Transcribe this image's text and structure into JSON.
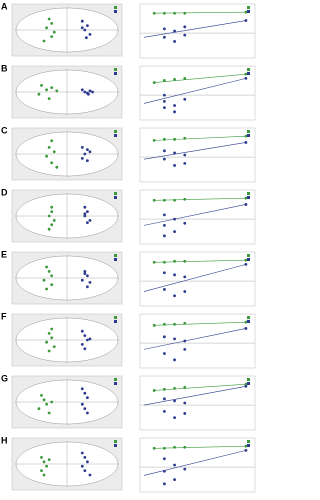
{
  "chart_data": [
    {
      "type": "panel",
      "label": "A",
      "score": {
        "xlim": [
          -1,
          1
        ],
        "ylim": [
          -1,
          1
        ],
        "groups": [
          {
            "color": "#3c9a3c",
            "x": [
              -0.35,
              -0.3,
              -0.4,
              -0.25,
              -0.3,
              -0.45
            ],
            "y": [
              0.5,
              0.3,
              0.1,
              -0.1,
              -0.3,
              -0.5
            ]
          },
          {
            "color": "#2b3a8f",
            "x": [
              0.3,
              0.4,
              0.35,
              0.45,
              0.3,
              0.38
            ],
            "y": [
              0.4,
              0.2,
              0,
              -0.2,
              0.1,
              -0.35
            ]
          }
        ]
      },
      "perm": {
        "xlim": [
          0,
          1.05
        ],
        "ylim": [
          -1,
          1.2
        ],
        "r2": {
          "color": "#3c9a3c",
          "x": [
            0.1,
            0.2,
            0.3,
            0.4,
            1
          ],
          "y": [
            0.95,
            0.95,
            0.95,
            0.95,
            1
          ]
        },
        "q2": {
          "color": "#2b3a8f",
          "x": [
            0.2,
            0.2,
            0.3,
            0.3,
            0.4,
            0.4,
            1
          ],
          "y": [
            0.2,
            -0.2,
            0.1,
            -0.4,
            -0.1,
            0.3,
            0.6
          ]
        },
        "q2_fit": {
          "x": [
            0,
            1
          ],
          "y": [
            -0.2,
            0.6
          ]
        }
      }
    },
    {
      "type": "panel",
      "label": "B",
      "score": {
        "xlim": [
          -1,
          1
        ],
        "ylim": [
          -1,
          1
        ],
        "groups": [
          {
            "color": "#3c9a3c",
            "x": [
              -0.5,
              -0.4,
              -0.3,
              -0.55,
              -0.35,
              -0.2
            ],
            "y": [
              0.3,
              0.1,
              0.2,
              -0.1,
              -0.3,
              0.05
            ]
          },
          {
            "color": "#2b3a8f",
            "x": [
              0.3,
              0.35,
              0.4,
              0.45,
              0.5,
              0.42
            ],
            "y": [
              0.1,
              0,
              -0.05,
              0.05,
              0,
              -0.1
            ]
          }
        ]
      },
      "perm": {
        "xlim": [
          0,
          1.05
        ],
        "ylim": [
          -1,
          1.2
        ],
        "r2": {
          "color": "#3c9a3c",
          "x": [
            0.1,
            0.2,
            0.3,
            0.4,
            1
          ],
          "y": [
            0.6,
            0.7,
            0.75,
            0.8,
            1
          ]
        },
        "q2": {
          "color": "#2b3a8f",
          "x": [
            0.2,
            0.2,
            0.2,
            0.3,
            0.3,
            0.4,
            1
          ],
          "y": [
            0,
            -0.3,
            -0.6,
            -0.5,
            -0.8,
            -0.2,
            0.8
          ]
        },
        "q2_fit": {
          "x": [
            0,
            1
          ],
          "y": [
            -0.4,
            0.8
          ]
        }
      }
    },
    {
      "type": "panel",
      "label": "C",
      "score": {
        "xlim": [
          -1,
          1
        ],
        "ylim": [
          -1,
          1
        ],
        "groups": [
          {
            "color": "#3c9a3c",
            "x": [
              -0.3,
              -0.35,
              -0.25,
              -0.4,
              -0.3,
              -0.2
            ],
            "y": [
              0.6,
              0.3,
              0.1,
              -0.1,
              -0.4,
              -0.6
            ]
          },
          {
            "color": "#2b3a8f",
            "x": [
              0.3,
              0.4,
              0.35,
              0.3,
              0.45,
              0.4
            ],
            "y": [
              0.3,
              0.2,
              0,
              -0.2,
              0.1,
              -0.3
            ]
          }
        ]
      },
      "perm": {
        "xlim": [
          0,
          1.05
        ],
        "ylim": [
          -1,
          1.2
        ],
        "r2": {
          "color": "#3c9a3c",
          "x": [
            0.1,
            0.2,
            0.3,
            0.4,
            1
          ],
          "y": [
            0.8,
            0.85,
            0.85,
            0.9,
            1
          ]
        },
        "q2": {
          "color": "#2b3a8f",
          "x": [
            0.2,
            0.2,
            0.3,
            0.3,
            0.4,
            0.4,
            1
          ],
          "y": [
            0.3,
            -0.1,
            0.2,
            -0.4,
            0.1,
            -0.3,
            0.7
          ]
        },
        "q2_fit": {
          "x": [
            0,
            1
          ],
          "y": [
            -0.1,
            0.7
          ]
        }
      }
    },
    {
      "type": "panel",
      "label": "D",
      "score": {
        "xlim": [
          -1,
          1
        ],
        "ylim": [
          -1,
          1
        ],
        "groups": [
          {
            "color": "#3c9a3c",
            "x": [
              -0.3,
              -0.3,
              -0.35,
              -0.25,
              -0.3,
              -0.35
            ],
            "y": [
              0.4,
              0.2,
              0,
              -0.2,
              -0.4,
              -0.6
            ]
          },
          {
            "color": "#2b3a8f",
            "x": [
              0.35,
              0.4,
              0.35,
              0.45,
              0.4,
              0.35
            ],
            "y": [
              0.4,
              0.2,
              0,
              -0.2,
              -0.3,
              0.1
            ]
          }
        ]
      },
      "perm": {
        "xlim": [
          0,
          1.05
        ],
        "ylim": [
          -1,
          1.2
        ],
        "r2": {
          "color": "#3c9a3c",
          "x": [
            0.1,
            0.2,
            0.3,
            0.4,
            1
          ],
          "y": [
            0.9,
            0.9,
            0.9,
            0.95,
            1
          ]
        },
        "q2": {
          "color": "#2b3a8f",
          "x": [
            0.2,
            0.2,
            0.2,
            0.3,
            0.3,
            0.4,
            1
          ],
          "y": [
            0.2,
            -0.3,
            -0.8,
            0,
            -0.6,
            -0.2,
            0.7
          ]
        },
        "q2_fit": {
          "x": [
            0,
            1
          ],
          "y": [
            -0.3,
            0.7
          ]
        }
      }
    },
    {
      "type": "panel",
      "label": "E",
      "score": {
        "xlim": [
          -1,
          1
        ],
        "ylim": [
          -1,
          1
        ],
        "groups": [
          {
            "color": "#3c9a3c",
            "x": [
              -0.4,
              -0.35,
              -0.3,
              -0.45,
              -0.3,
              -0.4
            ],
            "y": [
              0.5,
              0.3,
              0.1,
              -0.1,
              -0.3,
              -0.5
            ]
          },
          {
            "color": "#2b3a8f",
            "x": [
              0.35,
              0.4,
              0.3,
              0.45,
              0.35,
              0.4
            ],
            "y": [
              0.3,
              0.1,
              -0.1,
              -0.2,
              0.2,
              -0.4
            ]
          }
        ]
      },
      "perm": {
        "xlim": [
          0,
          1.05
        ],
        "ylim": [
          -1,
          1.2
        ],
        "r2": {
          "color": "#3c9a3c",
          "x": [
            0.1,
            0.2,
            0.3,
            0.4,
            1
          ],
          "y": [
            0.9,
            0.9,
            0.95,
            0.95,
            1
          ]
        },
        "q2": {
          "color": "#2b3a8f",
          "x": [
            0.2,
            0.2,
            0.3,
            0.3,
            0.4,
            0.4,
            1
          ],
          "y": [
            0.4,
            -0.4,
            0.3,
            -0.7,
            0.2,
            -0.5,
            0.8
          ]
        },
        "q2_fit": {
          "x": [
            0,
            1
          ],
          "y": [
            -0.5,
            0.8
          ]
        }
      }
    },
    {
      "type": "panel",
      "label": "F",
      "score": {
        "xlim": [
          -1,
          1
        ],
        "ylim": [
          -1,
          1
        ],
        "groups": [
          {
            "color": "#3c9a3c",
            "x": [
              -0.3,
              -0.35,
              -0.3,
              -0.4,
              -0.25,
              -0.35
            ],
            "y": [
              0.5,
              0.3,
              0.1,
              -0.1,
              -0.3,
              -0.5
            ]
          },
          {
            "color": "#2b3a8f",
            "x": [
              0.3,
              0.35,
              0.4,
              0.3,
              0.45,
              0.35
            ],
            "y": [
              0.4,
              0.2,
              0,
              -0.2,
              0.05,
              -0.4
            ]
          }
        ]
      },
      "perm": {
        "xlim": [
          0,
          1.05
        ],
        "ylim": [
          -1,
          1.2
        ],
        "r2": {
          "color": "#3c9a3c",
          "x": [
            0.1,
            0.2,
            0.3,
            0.4,
            1
          ],
          "y": [
            0.85,
            0.9,
            0.9,
            0.95,
            1
          ]
        },
        "q2": {
          "color": "#2b3a8f",
          "x": [
            0.2,
            0.2,
            0.3,
            0.3,
            0.4,
            0.4,
            1
          ],
          "y": [
            0.3,
            -0.5,
            0.2,
            -0.8,
            0.1,
            -0.3,
            0.7
          ]
        },
        "q2_fit": {
          "x": [
            0,
            1
          ],
          "y": [
            -0.3,
            0.7
          ]
        }
      }
    },
    {
      "type": "panel",
      "label": "G",
      "score": {
        "xlim": [
          -1,
          1
        ],
        "ylim": [
          -1,
          1
        ],
        "groups": [
          {
            "color": "#3c9a3c",
            "x": [
              -0.5,
              -0.45,
              -0.4,
              -0.55,
              -0.35,
              -0.3
            ],
            "y": [
              0.3,
              0.1,
              -0.1,
              -0.3,
              -0.5,
              0
            ]
          },
          {
            "color": "#2b3a8f",
            "x": [
              0.3,
              0.35,
              0.4,
              0.3,
              0.35,
              0.4
            ],
            "y": [
              0.6,
              0.4,
              0.2,
              -0.1,
              -0.3,
              -0.5
            ]
          }
        ]
      },
      "perm": {
        "xlim": [
          0,
          1.05
        ],
        "ylim": [
          -1,
          1.2
        ],
        "r2": {
          "color": "#3c9a3c",
          "x": [
            0.1,
            0.2,
            0.3,
            0.4,
            1
          ],
          "y": [
            0.7,
            0.75,
            0.8,
            0.85,
            1
          ]
        },
        "q2": {
          "color": "#2b3a8f",
          "x": [
            0.2,
            0.2,
            0.3,
            0.3,
            0.4,
            0.4,
            1
          ],
          "y": [
            0.3,
            -0.3,
            0.2,
            -0.6,
            0.1,
            -0.4,
            0.9
          ]
        },
        "q2_fit": {
          "x": [
            0,
            1
          ],
          "y": [
            0,
            0.9
          ]
        }
      }
    },
    {
      "type": "panel",
      "label": "H",
      "score": {
        "xlim": [
          -1,
          1
        ],
        "ylim": [
          -1,
          1
        ],
        "groups": [
          {
            "color": "#3c9a3c",
            "x": [
              -0.5,
              -0.45,
              -0.4,
              -0.5,
              -0.35,
              -0.45
            ],
            "y": [
              0.3,
              0.1,
              -0.1,
              -0.3,
              0.2,
              -0.5
            ]
          },
          {
            "color": "#2b3a8f",
            "x": [
              0.3,
              0.35,
              0.4,
              0.3,
              0.35,
              0.45
            ],
            "y": [
              0.5,
              0.3,
              0.1,
              -0.1,
              -0.3,
              -0.5
            ]
          }
        ]
      },
      "perm": {
        "xlim": [
          0,
          1.05
        ],
        "ylim": [
          -1,
          1.2
        ],
        "r2": {
          "color": "#3c9a3c",
          "x": [
            0.1,
            0.2,
            0.3,
            0.4,
            1
          ],
          "y": [
            0.9,
            0.9,
            0.95,
            0.95,
            1
          ]
        },
        "q2": {
          "color": "#2b3a8f",
          "x": [
            0.2,
            0.2,
            0.2,
            0.3,
            0.3,
            0.4,
            1
          ],
          "y": [
            0.4,
            -0.2,
            -0.8,
            0.1,
            -0.6,
            -0.1,
            0.8
          ]
        },
        "q2_fit": {
          "x": [
            0,
            1
          ],
          "y": [
            -0.4,
            0.8
          ]
        }
      }
    }
  ]
}
